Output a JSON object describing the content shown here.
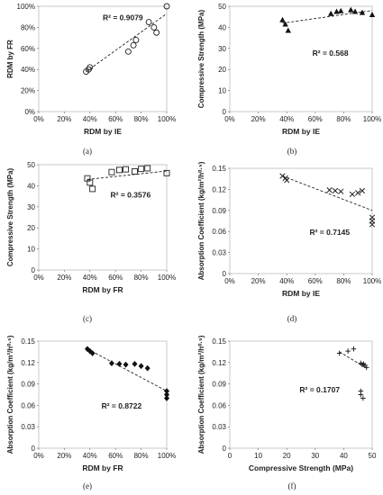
{
  "chart_data": [
    {
      "id": "a",
      "caption": "(a)",
      "type": "scatter",
      "xlabel": "RDM by IE",
      "ylabel": "RDM by FR",
      "xlim": [
        0,
        1
      ],
      "ylim": [
        0,
        1
      ],
      "xticks": [
        0,
        0.2,
        0.4,
        0.6,
        0.8,
        1.0
      ],
      "xtick_labels": [
        "0%",
        "20%",
        "40%",
        "60%",
        "80%",
        "100%"
      ],
      "yticks": [
        0,
        0.2,
        0.4,
        0.6,
        0.8,
        1.0
      ],
      "ytick_labels": [
        "0%",
        "20%",
        "40%",
        "60%",
        "80%",
        "100%"
      ],
      "marker": "circle",
      "r2_label": "R² = 0.9079",
      "x": [
        0.37,
        0.39,
        0.4,
        0.7,
        0.74,
        0.76,
        0.86,
        0.9,
        0.92,
        1.0
      ],
      "y": [
        0.38,
        0.4,
        0.42,
        0.57,
        0.63,
        0.68,
        0.85,
        0.8,
        0.75,
        1.0
      ],
      "trend": [
        [
          0.37,
          0.38
        ],
        [
          1.0,
          0.93
        ]
      ]
    },
    {
      "id": "b",
      "caption": "(b)",
      "type": "scatter",
      "xlabel": "RDM by IE",
      "ylabel": "Compressive Strength (MPa)",
      "xlim": [
        0,
        1
      ],
      "ylim": [
        0,
        50
      ],
      "xticks": [
        0,
        0.2,
        0.4,
        0.6,
        0.8,
        1.0
      ],
      "xtick_labels": [
        "0%",
        "20%",
        "40%",
        "60%",
        "80%",
        "100%"
      ],
      "yticks": [
        0,
        10,
        20,
        30,
        40,
        50
      ],
      "ytick_labels": [
        "0",
        "10",
        "20",
        "30",
        "40",
        "50"
      ],
      "marker": "triangle",
      "r2_label": "R² = 0.568",
      "x": [
        0.37,
        0.39,
        0.41,
        0.71,
        0.75,
        0.78,
        0.85,
        0.88,
        0.93,
        1.0
      ],
      "y": [
        43.5,
        41.5,
        38.5,
        46.5,
        47.5,
        47.8,
        48.3,
        47.5,
        47.0,
        46.0
      ],
      "trend": [
        [
          0.37,
          42.0
        ],
        [
          1.0,
          48.0
        ]
      ]
    },
    {
      "id": "c",
      "caption": "(c)",
      "type": "scatter",
      "xlabel": "RDM by FR",
      "ylabel": "Compressive Strength (MPa)",
      "xlim": [
        0,
        1
      ],
      "ylim": [
        0,
        50
      ],
      "xticks": [
        0,
        0.2,
        0.4,
        0.6,
        0.8,
        1.0
      ],
      "xtick_labels": [
        "0%",
        "20%",
        "40%",
        "60%",
        "80%",
        "100%"
      ],
      "yticks": [
        0,
        10,
        20,
        30,
        40,
        50
      ],
      "ytick_labels": [
        "0",
        "10",
        "20",
        "30",
        "40",
        "50"
      ],
      "marker": "square",
      "r2_label": "R² = 0.3576",
      "x": [
        0.38,
        0.4,
        0.42,
        0.57,
        0.63,
        0.68,
        0.75,
        0.8,
        0.85,
        1.0
      ],
      "y": [
        43.5,
        41.5,
        38.5,
        46.5,
        47.5,
        47.8,
        46.8,
        48.0,
        48.3,
        46.0
      ],
      "trend": [
        [
          0.38,
          43.0
        ],
        [
          1.0,
          47.0
        ]
      ]
    },
    {
      "id": "d",
      "caption": "(d)",
      "type": "scatter",
      "xlabel": "RDM by IE",
      "ylabel": "Absorption Coefficient (kg/m²/h⁰·⁵)",
      "xlim": [
        0,
        1
      ],
      "ylim": [
        0,
        0.15
      ],
      "xticks": [
        0,
        0.2,
        0.4,
        0.6,
        0.8,
        1.0
      ],
      "xtick_labels": [
        "0%",
        "20%",
        "40%",
        "60%",
        "80%",
        "100%"
      ],
      "yticks": [
        0,
        0.03,
        0.06,
        0.09,
        0.12,
        0.15
      ],
      "ytick_labels": [
        "0",
        "0.03",
        "0.06",
        "0.09",
        "0.12",
        "0.15"
      ],
      "marker": "x",
      "r2_label": "R² = 0.7145",
      "x": [
        0.37,
        0.39,
        0.4,
        0.7,
        0.74,
        0.78,
        0.86,
        0.9,
        0.93,
        1.0,
        1.0,
        1.0
      ],
      "y": [
        0.139,
        0.136,
        0.133,
        0.119,
        0.118,
        0.117,
        0.113,
        0.115,
        0.118,
        0.08,
        0.075,
        0.07
      ],
      "trend": [
        [
          0.37,
          0.139
        ],
        [
          1.0,
          0.09
        ]
      ]
    },
    {
      "id": "e",
      "caption": "(e)",
      "type": "scatter",
      "xlabel": "RDM by FR",
      "ylabel": "Absorption Coefficient (kg/m²/h⁰·⁵)",
      "xlim": [
        0,
        1
      ],
      "ylim": [
        0,
        0.15
      ],
      "xticks": [
        0,
        0.2,
        0.4,
        0.6,
        0.8,
        1.0
      ],
      "xtick_labels": [
        "0%",
        "20%",
        "40%",
        "60%",
        "80%",
        "100%"
      ],
      "yticks": [
        0,
        0.03,
        0.06,
        0.09,
        0.12,
        0.15
      ],
      "ytick_labels": [
        "0",
        "0.03",
        "0.06",
        "0.09",
        "0.12",
        "0.15"
      ],
      "marker": "diamond",
      "r2_label": "R² = 0.8722",
      "x": [
        0.38,
        0.4,
        0.42,
        0.57,
        0.63,
        0.68,
        0.75,
        0.8,
        0.85,
        1.0,
        1.0,
        1.0
      ],
      "y": [
        0.139,
        0.136,
        0.133,
        0.119,
        0.118,
        0.117,
        0.118,
        0.115,
        0.112,
        0.08,
        0.075,
        0.07
      ],
      "trend": [
        [
          0.38,
          0.139
        ],
        [
          1.0,
          0.08
        ]
      ]
    },
    {
      "id": "f",
      "caption": "(f)",
      "type": "scatter",
      "xlabel": "Compressive Strength (MPa)",
      "ylabel": "Absorption Coefficient (kg/m²/h⁰·⁵)",
      "xlim": [
        0,
        50
      ],
      "ylim": [
        0,
        0.15
      ],
      "xticks": [
        0,
        10,
        20,
        30,
        40,
        50
      ],
      "xtick_labels": [
        "0",
        "10",
        "20",
        "30",
        "40",
        "50"
      ],
      "yticks": [
        0,
        0.03,
        0.06,
        0.09,
        0.12,
        0.15
      ],
      "ytick_labels": [
        "0",
        "0.03",
        "0.06",
        "0.09",
        "0.12",
        "0.15"
      ],
      "marker": "plus",
      "r2_label": "R² = 0.1707",
      "x": [
        38.5,
        41.5,
        43.5,
        46.0,
        46.5,
        47.0,
        47.5,
        48.0,
        46.0,
        46.0,
        46.8
      ],
      "y": [
        0.133,
        0.136,
        0.139,
        0.119,
        0.117,
        0.118,
        0.116,
        0.113,
        0.08,
        0.075,
        0.07
      ],
      "trend": [
        [
          38.5,
          0.135
        ],
        [
          48.0,
          0.112
        ]
      ]
    }
  ]
}
